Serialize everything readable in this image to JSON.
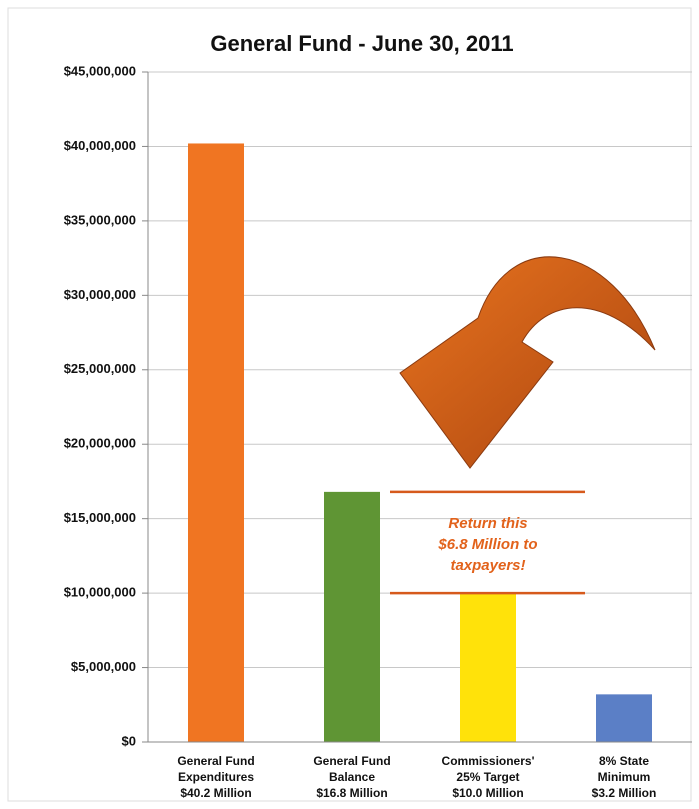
{
  "chart_data": {
    "type": "bar",
    "title": "General Fund - June 30, 2011",
    "categories": [
      [
        "General Fund",
        "Expenditures"
      ],
      [
        "General Fund",
        "Balance"
      ],
      [
        "Commissioners'",
        "25% Target"
      ],
      [
        "8% State",
        "Minimum"
      ]
    ],
    "values": [
      40200000,
      16800000,
      10000000,
      3200000
    ],
    "value_labels": [
      "$40.2 Million",
      "$16.8 Million",
      "$10.0 Million",
      "$3.2 Million"
    ],
    "colors": [
      "#f07522",
      "#5f9534",
      "#ffe20a",
      "#5b7fc6"
    ],
    "ylim": [
      0,
      45000000
    ],
    "yticks": [
      {
        "value": 0,
        "label": "$0"
      },
      {
        "value": 5000000,
        "label": "$5,000,000"
      },
      {
        "value": 10000000,
        "label": "$10,000,000"
      },
      {
        "value": 15000000,
        "label": "$15,000,000"
      },
      {
        "value": 20000000,
        "label": "$20,000,000"
      },
      {
        "value": 25000000,
        "label": "$25,000,000"
      },
      {
        "value": 30000000,
        "label": "$30,000,000"
      },
      {
        "value": 35000000,
        "label": "$35,000,000"
      },
      {
        "value": 40000000,
        "label": "$40,000,000"
      },
      {
        "value": 45000000,
        "label": "$45,000,000"
      }
    ],
    "grid": true,
    "annotation": [
      "Return this",
      "$6.8 Million to",
      "taxpayers!"
    ]
  }
}
